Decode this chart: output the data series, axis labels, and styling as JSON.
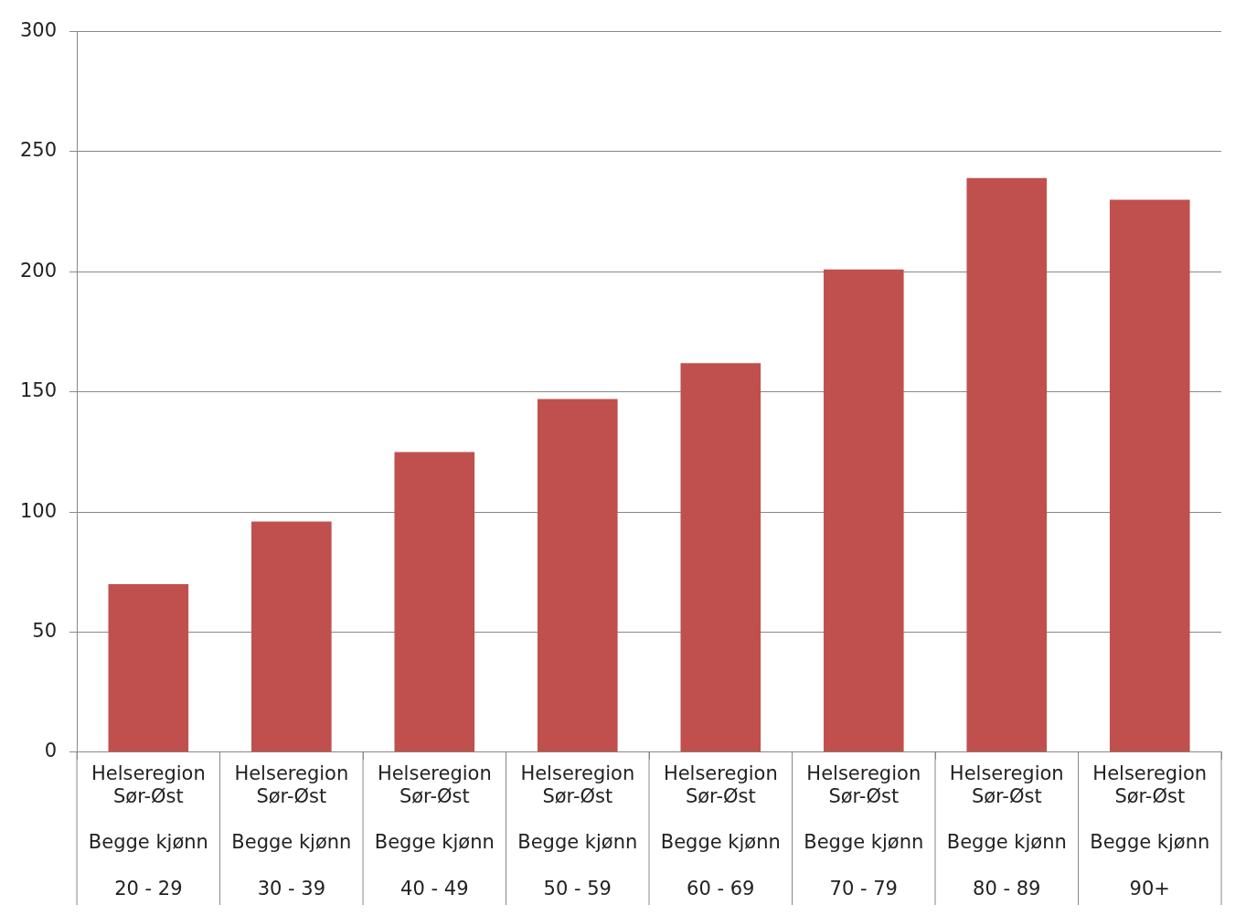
{
  "chart_data": {
    "type": "bar",
    "categories": [
      "Helseregion Sør-Øst\nBegge kjønn\n20 - 29",
      "Helseregion Sør-Øst\nBegge kjønn\n30 - 39",
      "Helseregion Sør-Øst\nBegge kjønn\n40 - 49",
      "Helseregion Sør-Øst\nBegge kjønn\n50 - 59",
      "Helseregion Sør-Øst\nBegge kjønn\n60 - 69",
      "Helseregion Sør-Øst\nBegge kjønn\n70 - 79",
      "Helseregion Sør-Øst\nBegge kjønn\n80 - 89",
      "Helseregion Sør-Øst\nBegge kjønn\n90+"
    ],
    "values": [
      70,
      96,
      125,
      147,
      162,
      201,
      239,
      230
    ],
    "color": "#c0504d",
    "ylim": [
      0,
      300
    ],
    "yticks": [
      0,
      50,
      100,
      150,
      200,
      250,
      300
    ],
    "grid": "y"
  }
}
